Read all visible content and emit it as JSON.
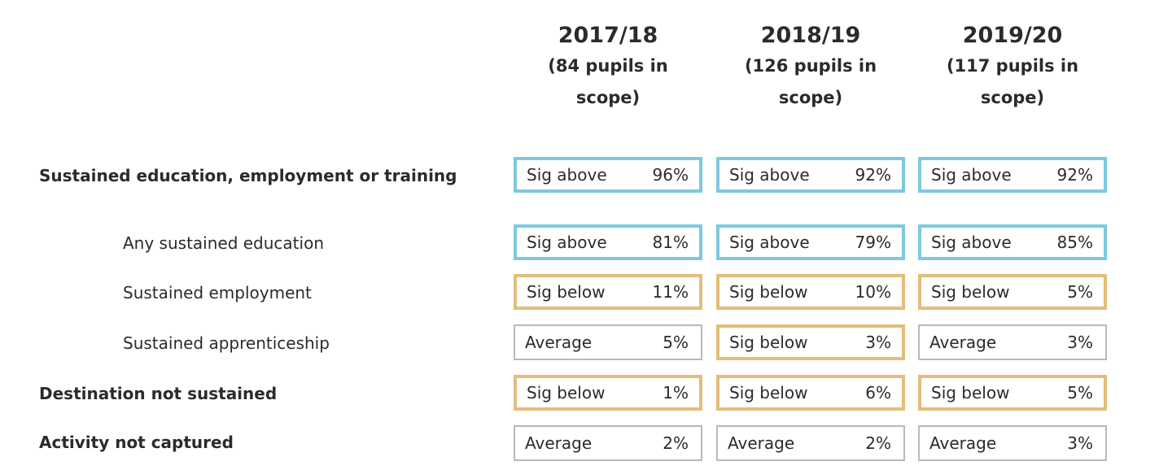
{
  "columns": [
    {
      "year": "2017/18",
      "subtitle": "(84 pupils in scope)"
    },
    {
      "year": "2018/19",
      "subtitle": "(126 pupils in scope)"
    },
    {
      "year": "2019/20",
      "subtitle": "(117 pupils in scope)"
    }
  ],
  "rows": [
    {
      "label": "Sustained education, employment or training",
      "cells": [
        {
          "status": "Sig above",
          "value": "96%"
        },
        {
          "status": "Sig above",
          "value": "92%"
        },
        {
          "status": "Sig above",
          "value": "92%"
        }
      ]
    },
    {
      "label": "Any sustained education",
      "cells": [
        {
          "status": "Sig above",
          "value": "81%"
        },
        {
          "status": "Sig above",
          "value": "79%"
        },
        {
          "status": "Sig above",
          "value": "85%"
        }
      ]
    },
    {
      "label": "Sustained employment",
      "cells": [
        {
          "status": "Sig below",
          "value": "11%"
        },
        {
          "status": "Sig below",
          "value": "10%"
        },
        {
          "status": "Sig below",
          "value": "5%"
        }
      ]
    },
    {
      "label": "Sustained apprenticeship",
      "cells": [
        {
          "status": "Average",
          "value": "5%"
        },
        {
          "status": "Sig below",
          "value": "3%"
        },
        {
          "status": "Average",
          "value": "3%"
        }
      ]
    },
    {
      "label": "Destination not sustained",
      "cells": [
        {
          "status": "Sig below",
          "value": "1%"
        },
        {
          "status": "Sig below",
          "value": "6%"
        },
        {
          "status": "Sig below",
          "value": "5%"
        }
      ]
    },
    {
      "label": "Activity not captured",
      "cells": [
        {
          "status": "Average",
          "value": "2%"
        },
        {
          "status": "Average",
          "value": "2%"
        },
        {
          "status": "Average",
          "value": "3%"
        }
      ]
    }
  ],
  "colors": {
    "sig_above_border": "#7cc9e0",
    "sig_below_border": "#e3bd7b",
    "average_border": "#b9b9b9"
  }
}
